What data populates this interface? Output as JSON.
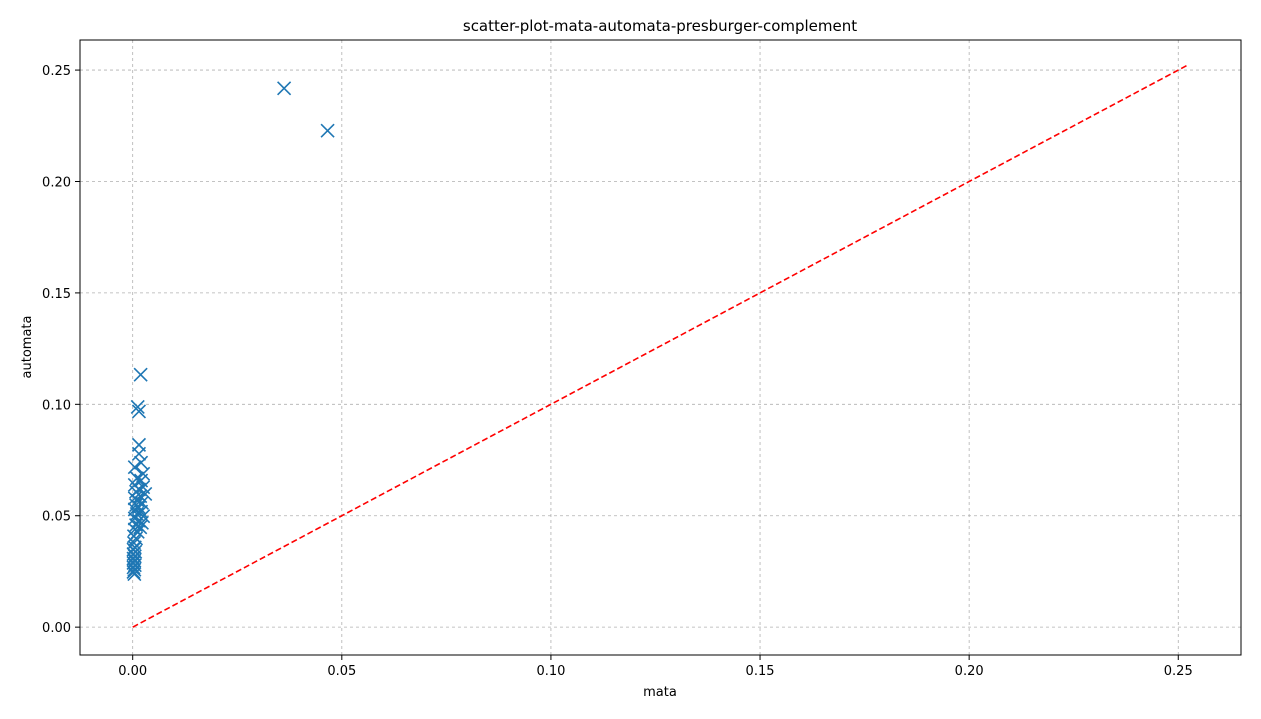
{
  "chart_data": {
    "type": "scatter",
    "title": "scatter-plot-mata-automata-presburger-complement",
    "xlabel": "mata",
    "ylabel": "automata",
    "xlim": [
      -0.0126,
      0.265
    ],
    "ylim": [
      -0.0125,
      0.2635
    ],
    "xticks": [
      0.0,
      0.05,
      0.1,
      0.15,
      0.2,
      0.25
    ],
    "xtick_labels": [
      "0.00",
      "0.05",
      "0.10",
      "0.15",
      "0.20",
      "0.25"
    ],
    "yticks": [
      0.0,
      0.05,
      0.1,
      0.15,
      0.2,
      0.25
    ],
    "ytick_labels": [
      "0.00",
      "0.05",
      "0.10",
      "0.15",
      "0.20",
      "0.25"
    ],
    "grid": true,
    "marker": "x",
    "colors": {
      "points": "#1f77b4",
      "diagonal": "#ff0000",
      "grid": "#b0b0b0",
      "axes": "#000000"
    },
    "diagonal": {
      "style": "dashed",
      "from": [
        0.0,
        0.0
      ],
      "to": [
        0.2525,
        0.2525
      ]
    },
    "series": [
      {
        "values": [
          [
            0.0362,
            0.2418
          ],
          [
            0.0466,
            0.2228
          ],
          [
            0.0019,
            0.1133
          ],
          [
            0.0012,
            0.0988
          ],
          [
            0.0015,
            0.0968
          ],
          [
            0.0015,
            0.0818
          ],
          [
            0.0015,
            0.0778
          ],
          [
            0.002,
            0.0738
          ],
          [
            0.0005,
            0.0718
          ],
          [
            0.0025,
            0.0688
          ],
          [
            0.001,
            0.0668
          ],
          [
            0.002,
            0.0658
          ],
          [
            0.0005,
            0.0638
          ],
          [
            0.0025,
            0.0628
          ],
          [
            0.0015,
            0.0618
          ],
          [
            0.0008,
            0.0608
          ],
          [
            0.003,
            0.0598
          ],
          [
            0.0018,
            0.0588
          ],
          [
            0.0005,
            0.0578
          ],
          [
            0.0012,
            0.0568
          ],
          [
            0.0022,
            0.0558
          ],
          [
            0.0008,
            0.0548
          ],
          [
            0.0015,
            0.0538
          ],
          [
            0.0005,
            0.0528
          ],
          [
            0.002,
            0.0518
          ],
          [
            0.001,
            0.0508
          ],
          [
            0.0025,
            0.0498
          ],
          [
            0.0005,
            0.0488
          ],
          [
            0.0015,
            0.0478
          ],
          [
            0.0022,
            0.0468
          ],
          [
            0.0008,
            0.0458
          ],
          [
            0.0018,
            0.0448
          ],
          [
            0.0005,
            0.0438
          ],
          [
            0.0012,
            0.0428
          ],
          [
            0.0003,
            0.0408
          ],
          [
            0.0008,
            0.0398
          ],
          [
            0.0003,
            0.0378
          ],
          [
            0.0005,
            0.0358
          ],
          [
            0.0002,
            0.0348
          ],
          [
            0.0006,
            0.0338
          ],
          [
            0.0002,
            0.0328
          ],
          [
            0.0005,
            0.0318
          ],
          [
            0.0002,
            0.0308
          ],
          [
            0.0004,
            0.0298
          ],
          [
            0.0002,
            0.0288
          ],
          [
            0.0005,
            0.0278
          ],
          [
            0.0002,
            0.0268
          ],
          [
            0.0004,
            0.0258
          ],
          [
            0.0002,
            0.0248
          ],
          [
            0.0004,
            0.0238
          ]
        ]
      }
    ]
  }
}
